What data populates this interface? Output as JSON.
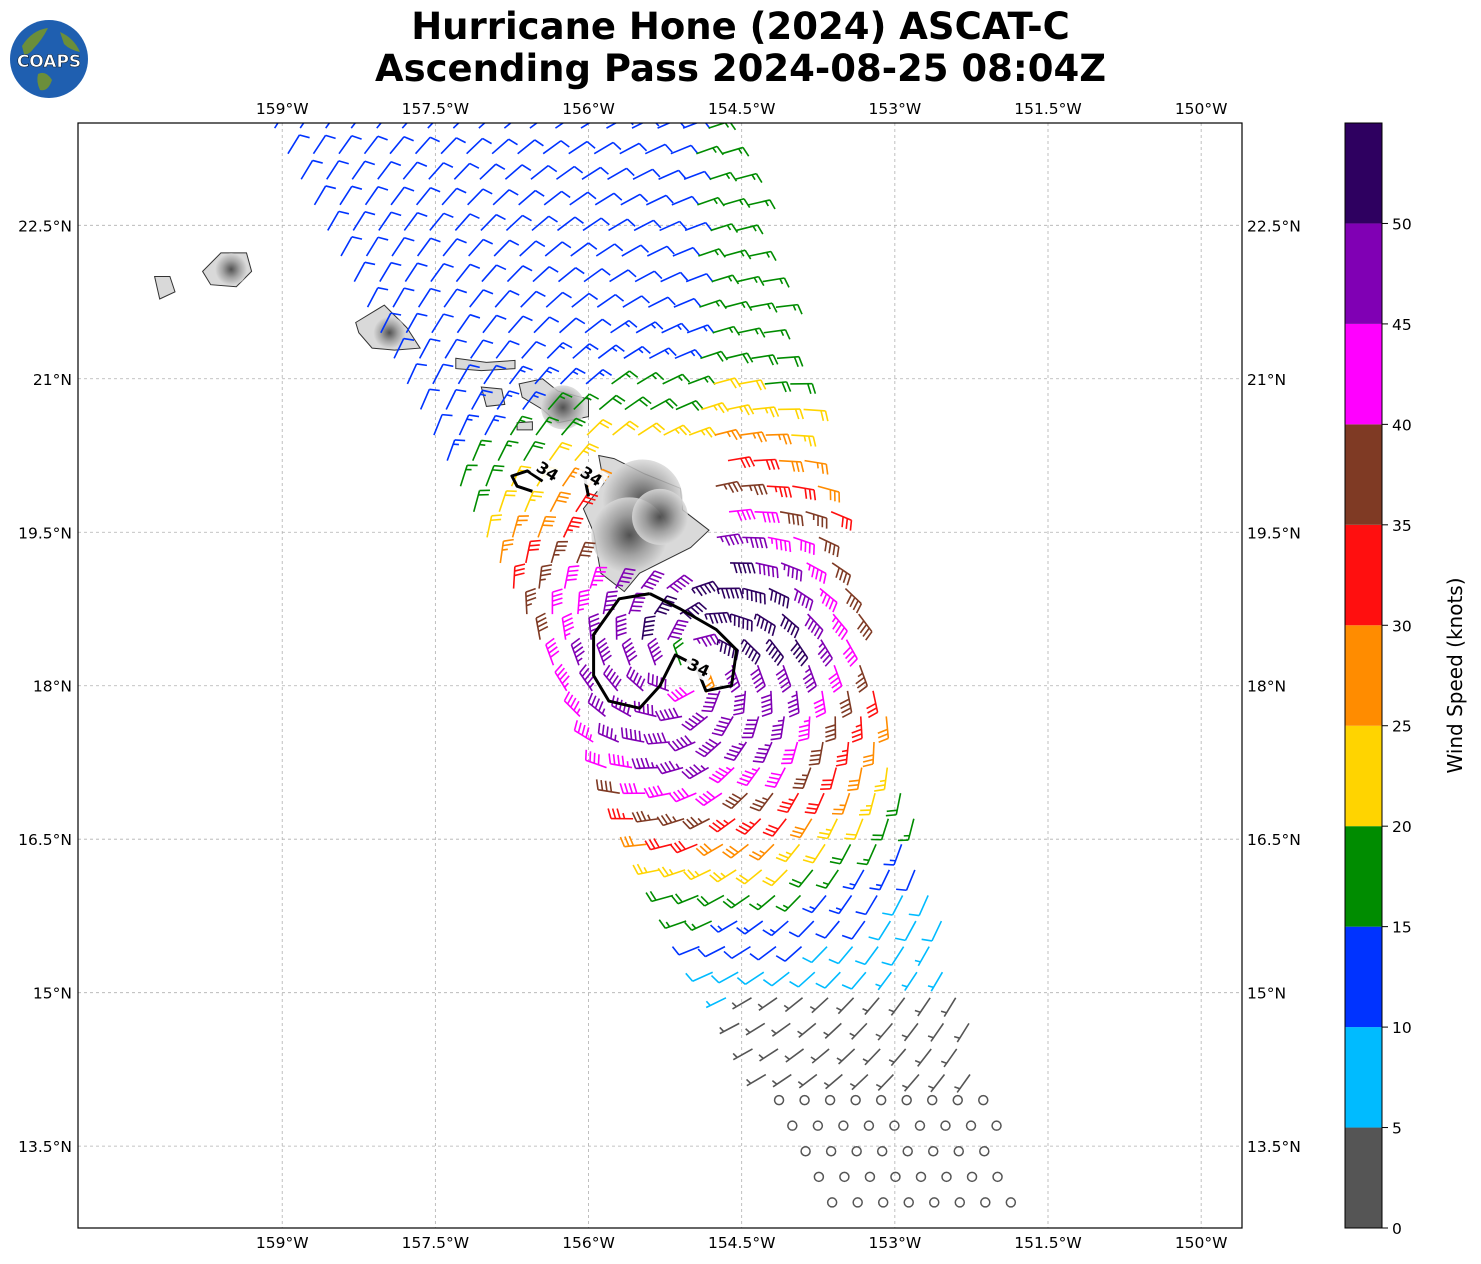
{
  "title": {
    "line1": "Hurricane Hone (2024) ASCAT-C",
    "line2": "Ascending Pass 2024-08-25 08:04Z"
  },
  "logo": {
    "text": "COAPS",
    "colors": {
      "ocean": "#1f5fb0",
      "land": "#6b8e3a",
      "text": "#ffffff"
    }
  },
  "map": {
    "lon_range": [
      -161.0,
      -149.6
    ],
    "lat_range": [
      12.7,
      23.5
    ],
    "gridlines": true,
    "lon_ticks": [
      {
        "value": -159.0,
        "label": "159°W"
      },
      {
        "value": -157.5,
        "label": "157.5°W"
      },
      {
        "value": -156.0,
        "label": "156°W"
      },
      {
        "value": -154.5,
        "label": "154.5°W"
      },
      {
        "value": -153.0,
        "label": "153°W"
      },
      {
        "value": -151.5,
        "label": "151.5°W"
      },
      {
        "value": -150.0,
        "label": "150°W"
      }
    ],
    "lat_ticks": [
      {
        "value": 22.5,
        "label": "22.5°N"
      },
      {
        "value": 21.0,
        "label": "21°N"
      },
      {
        "value": 19.5,
        "label": "19.5°N"
      },
      {
        "value": 18.0,
        "label": "18°N"
      },
      {
        "value": 16.5,
        "label": "16.5°N"
      },
      {
        "value": 15.0,
        "label": "15°N"
      },
      {
        "value": 13.5,
        "label": "13.5°N"
      }
    ],
    "contour_label": "34",
    "land_colors": {
      "fill": "#d9d9d9",
      "peak": "#4a4a4a",
      "coast": "#333333"
    },
    "contour_color": "#000000"
  },
  "colorbar": {
    "label": "Wind Speed (knots)",
    "ticks": [
      "0",
      "5",
      "10",
      "15",
      "20",
      "25",
      "30",
      "35",
      "40",
      "45",
      "50"
    ],
    "bins": [
      {
        "min": 0,
        "max": 5,
        "color": "#555555"
      },
      {
        "min": 5,
        "max": 10,
        "color": "#00bbff"
      },
      {
        "min": 10,
        "max": 15,
        "color": "#0033ff"
      },
      {
        "min": 15,
        "max": 20,
        "color": "#008c00"
      },
      {
        "min": 20,
        "max": 25,
        "color": "#ffd400"
      },
      {
        "min": 25,
        "max": 30,
        "color": "#ff8c00"
      },
      {
        "min": 30,
        "max": 35,
        "color": "#ff0f0f"
      },
      {
        "min": 35,
        "max": 40,
        "color": "#7f3a24"
      },
      {
        "min": 40,
        "max": 45,
        "color": "#ff00ff"
      },
      {
        "min": 45,
        "max": 50,
        "color": "#8000b4"
      },
      {
        "min": 50,
        "max": 55,
        "color": "#2e0060"
      }
    ]
  },
  "storm_center": {
    "lon": -155.0,
    "lat": 18.2
  }
}
